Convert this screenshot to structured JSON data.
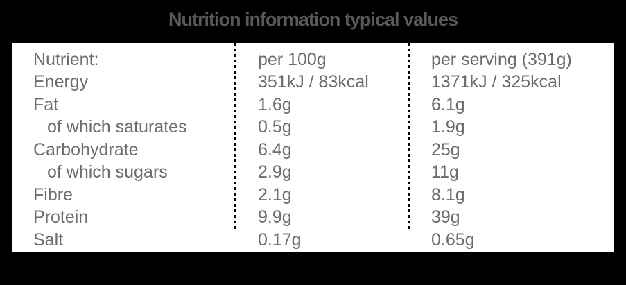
{
  "title": "Nutrition information typical values",
  "table": {
    "header": {
      "nutrient": "Nutrient:",
      "per_100g": "per 100g",
      "per_serving": "per serving (391g)"
    },
    "rows": [
      {
        "nutrient": "Energy",
        "per_100g": "351kJ / 83kcal",
        "per_serving": "1371kJ / 325kcal",
        "indent": false
      },
      {
        "nutrient": "Fat",
        "per_100g": "1.6g",
        "per_serving": "6.1g",
        "indent": false
      },
      {
        "nutrient": "of which saturates",
        "per_100g": "0.5g",
        "per_serving": "1.9g",
        "indent": true
      },
      {
        "nutrient": "Carbohydrate",
        "per_100g": "6.4g",
        "per_serving": "25g",
        "indent": false
      },
      {
        "nutrient": "of which sugars",
        "per_100g": "2.9g",
        "per_serving": "11g",
        "indent": true
      },
      {
        "nutrient": "Fibre",
        "per_100g": "2.1g",
        "per_serving": "8.1g",
        "indent": false
      },
      {
        "nutrient": "Protein",
        "per_100g": "9.9g",
        "per_serving": "39g",
        "indent": false
      },
      {
        "nutrient": "Salt",
        "per_100g": "0.17g",
        "per_serving": "0.65g",
        "indent": false
      }
    ]
  },
  "colors": {
    "background": "#000000",
    "panel_background": "#ffffff",
    "title_text": "#58595b",
    "body_text": "#6b6c6e",
    "divider": "#000000"
  }
}
